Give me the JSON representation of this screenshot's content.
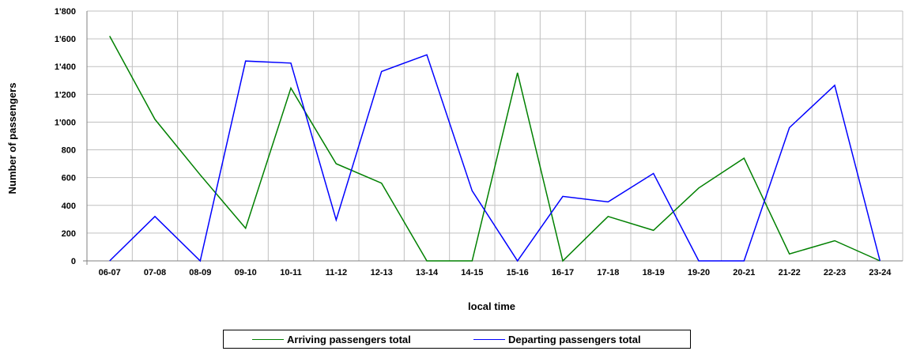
{
  "chart_data": {
    "type": "line",
    "xlabel": "local time",
    "ylabel": "Number of passengers",
    "ylim": [
      0,
      1800
    ],
    "yticks": [
      0,
      200,
      400,
      600,
      800,
      1000,
      1200,
      1400,
      1600,
      1800
    ],
    "ytick_labels": [
      "0",
      "200",
      "400",
      "600",
      "800",
      "1'000",
      "1'200",
      "1'400",
      "1'600",
      "1'800"
    ],
    "grid": true,
    "legend_position": "bottom-center",
    "categories": [
      "06-07",
      "07-08",
      "08-09",
      "09-10",
      "10-11",
      "11-12",
      "12-13",
      "13-14",
      "14-15",
      "15-16",
      "16-17",
      "17-18",
      "18-19",
      "19-20",
      "20-21",
      "21-22",
      "22-23",
      "23-24"
    ],
    "series": [
      {
        "name": "Arriving passengers total",
        "color": "#008000",
        "values": [
          1620,
          1020,
          620,
          235,
          1245,
          700,
          560,
          0,
          0,
          1355,
          0,
          320,
          220,
          525,
          740,
          50,
          145,
          0
        ]
      },
      {
        "name": "Departing passengers total",
        "color": "#0000ff",
        "values": [
          0,
          320,
          0,
          1440,
          1425,
          295,
          1365,
          1485,
          505,
          0,
          465,
          425,
          630,
          0,
          0,
          960,
          1265,
          0
        ]
      }
    ]
  }
}
